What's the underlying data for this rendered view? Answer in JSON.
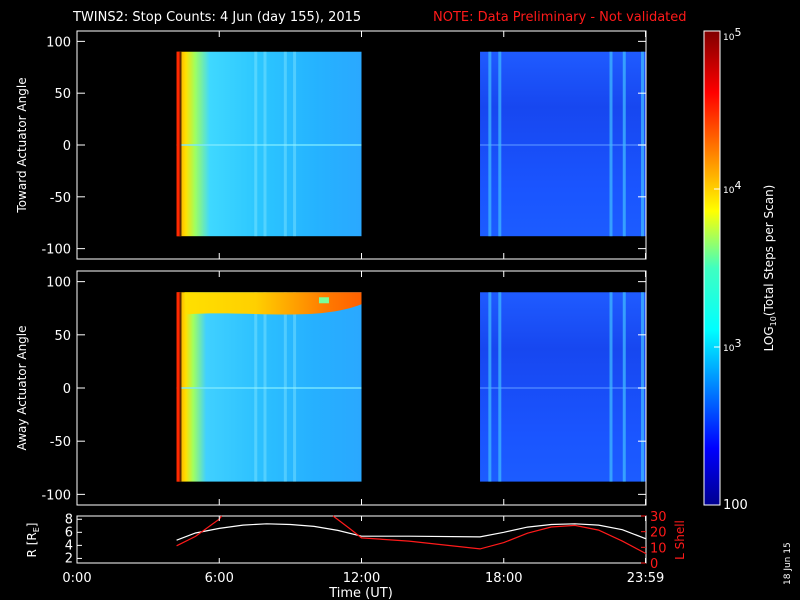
{
  "title": "TWINS2: Stop Counts:  4 Jun (day 155), 2015",
  "note": "NOTE: Data Preliminary - Not validated",
  "date_stamp": "18 Jun 15",
  "colors": {
    "background": "#000000",
    "axes": "#ffffff",
    "note": "#ff1a1a",
    "r_line": "#ffffff",
    "lshell_line": "#ff1a1a"
  },
  "chart_data": [
    {
      "type": "heatmap",
      "ylabel": "Toward Actuator Angle",
      "ylim": [
        -110,
        110
      ],
      "yticks": [
        100,
        50,
        0,
        -50,
        -100
      ],
      "x_range_hours": [
        0,
        24
      ],
      "data_intervals_hours": [
        [
          4.2,
          12.0
        ],
        [
          17.0,
          24.0
        ]
      ],
      "angle_range": [
        -88,
        90
      ]
    },
    {
      "type": "heatmap",
      "ylabel": "Away Actuator Angle",
      "ylim": [
        -110,
        110
      ],
      "yticks": [
        100,
        50,
        0,
        -50,
        -100
      ],
      "x_range_hours": [
        0,
        24
      ],
      "data_intervals_hours": [
        [
          4.2,
          12.0
        ],
        [
          17.0,
          24.0
        ]
      ],
      "angle_range": [
        -88,
        90
      ]
    },
    {
      "type": "line",
      "ylabel_left": "R [R",
      "ylabel_left_sub": "E",
      "ylabel_left_close": "]",
      "ylabel_right": "L Shell",
      "left_ticks": [
        8,
        6,
        4,
        2
      ],
      "left_ylim": [
        1.3,
        8.5
      ],
      "right_ticks": [
        30,
        20,
        10,
        0
      ],
      "right_ylim": [
        0,
        30
      ],
      "xlabel": "Time (UT)",
      "xticks": [
        {
          "value": 0,
          "label": "0:00"
        },
        {
          "value": 6,
          "label": "6:00"
        },
        {
          "value": 12,
          "label": "12:00"
        },
        {
          "value": 18,
          "label": "18:00"
        },
        {
          "value": 23.98,
          "label": "23:59"
        }
      ],
      "series": [
        {
          "axis": "left",
          "color": "#ffffff",
          "x": [
            4.2,
            5.0,
            6.0,
            7.0,
            8.0,
            9.0,
            10.0,
            11.0,
            12.0,
            14.0,
            17.0,
            18.0,
            19.0,
            20.0,
            21.0,
            22.0,
            23.0,
            24.0
          ],
          "y": [
            4.8,
            5.9,
            6.6,
            7.1,
            7.3,
            7.2,
            6.9,
            6.3,
            5.4,
            5.4,
            5.3,
            6.0,
            6.8,
            7.2,
            7.3,
            7.1,
            6.4,
            5.0
          ]
        },
        {
          "axis": "right",
          "color": "#ff1a1a",
          "x": [
            4.2,
            5.0,
            6.0,
            6.1
          ],
          "y": [
            11,
            17,
            28,
            30
          ]
        },
        {
          "axis": "right",
          "color": "#ff1a1a",
          "x": [
            10.8,
            11.5,
            12.0,
            14.0,
            17.0,
            18.0,
            19.0,
            20.0,
            21.0,
            22.0,
            23.0,
            24.0
          ],
          "y": [
            30,
            22,
            16,
            14,
            9,
            13,
            19,
            23,
            24,
            21,
            14,
            6
          ]
        }
      ]
    }
  ],
  "colorbar": {
    "label_pre": "LOG",
    "label_sub": "10",
    "label_post": "(Total Steps per Scan)",
    "ticks": [
      {
        "base": "10",
        "exp": "5",
        "value": 100000
      },
      {
        "base": "10",
        "exp": "4",
        "value": 10000
      },
      {
        "base": "10",
        "exp": "3",
        "value": 1000
      },
      {
        "base": "100",
        "exp": "",
        "value": 100
      }
    ],
    "range": [
      100,
      100000
    ]
  }
}
